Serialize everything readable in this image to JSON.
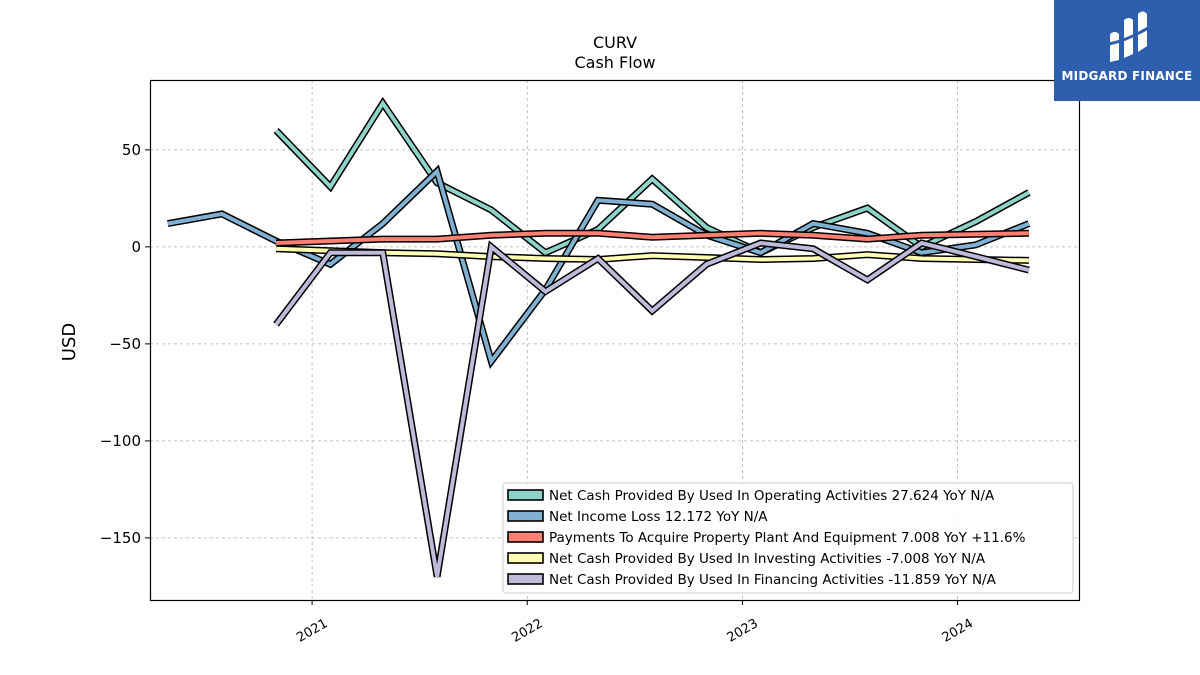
{
  "chart_data": {
    "type": "line",
    "title": "CURV",
    "subtitle": "Cash Flow",
    "xlabel": "",
    "ylabel": "USD",
    "xlim": [
      "2020-04-01",
      "2024-07-25"
    ],
    "ylim": [
      -182,
      86
    ],
    "x_ticks": [
      "2021-01-01",
      "2022-01-01",
      "2023-01-01",
      "2024-01-01"
    ],
    "x_tick_labels": [
      "2021",
      "2022",
      "2023",
      "2024"
    ],
    "y_ticks": [
      50,
      0,
      -50,
      -100,
      -150
    ],
    "y_tick_labels": [
      "50",
      "0",
      "−50",
      "−100",
      "−150"
    ],
    "grid": true,
    "legend_position": "lower-right",
    "series": [
      {
        "name": "Net Cash Provided By Used In Operating Activities",
        "legend_label": "Net Cash Provided By Used In Operating Activities  27.624 YoY N/A",
        "color": "#8dd3c7",
        "points": [
          [
            "2020-11-01",
            60
          ],
          [
            "2021-02-01",
            31
          ],
          [
            "2021-05-01",
            74
          ],
          [
            "2021-08-01",
            33
          ],
          [
            "2021-11-01",
            19
          ],
          [
            "2022-02-01",
            -3
          ],
          [
            "2022-05-01",
            9
          ],
          [
            "2022-08-01",
            35
          ],
          [
            "2022-11-01",
            10
          ],
          [
            "2023-02-01",
            -3
          ],
          [
            "2023-05-01",
            10
          ],
          [
            "2023-08-01",
            20
          ],
          [
            "2023-11-01",
            0
          ],
          [
            "2024-02-01",
            13
          ],
          [
            "2024-05-01",
            28
          ]
        ]
      },
      {
        "name": "Net Income Loss",
        "legend_label": "Net Income Loss  12.172 YoY N/A",
        "color": "#80b1d3",
        "points": [
          [
            "2020-05-01",
            12
          ],
          [
            "2020-08-01",
            17
          ],
          [
            "2020-11-01",
            3
          ],
          [
            "2021-02-01",
            -9
          ],
          [
            "2021-05-01",
            12
          ],
          [
            "2021-08-01",
            39
          ],
          [
            "2021-11-01",
            -59
          ],
          [
            "2022-02-01",
            -22
          ],
          [
            "2022-05-01",
            24
          ],
          [
            "2022-08-01",
            22
          ],
          [
            "2022-11-01",
            6
          ],
          [
            "2023-02-01",
            -3
          ],
          [
            "2023-05-01",
            12
          ],
          [
            "2023-08-01",
            7
          ],
          [
            "2023-11-01",
            -3
          ],
          [
            "2024-02-01",
            1
          ],
          [
            "2024-05-01",
            12
          ]
        ]
      },
      {
        "name": "Payments To Acquire Property Plant And Equipment",
        "legend_label": "Payments To Acquire Property Plant And Equipment  7.008 YoY +11.6%",
        "color": "#fb8072",
        "points": [
          [
            "2020-11-01",
            2
          ],
          [
            "2021-02-01",
            3
          ],
          [
            "2021-05-01",
            4
          ],
          [
            "2021-08-01",
            4
          ],
          [
            "2021-11-01",
            6
          ],
          [
            "2022-02-01",
            7
          ],
          [
            "2022-05-01",
            7
          ],
          [
            "2022-08-01",
            5
          ],
          [
            "2022-11-01",
            6
          ],
          [
            "2023-02-01",
            7
          ],
          [
            "2023-05-01",
            6
          ],
          [
            "2023-08-01",
            4
          ],
          [
            "2023-11-01",
            6
          ],
          [
            "2024-02-01",
            6.5
          ],
          [
            "2024-05-01",
            7
          ]
        ]
      },
      {
        "name": "Net Cash Provided By Used In Investing Activities",
        "legend_label": "Net Cash Provided By Used In Investing Activities  -7.008 YoY N/A",
        "color": "#ffffb3",
        "points": [
          [
            "2020-11-01",
            -1
          ],
          [
            "2021-02-01",
            -2
          ],
          [
            "2021-05-01",
            -3
          ],
          [
            "2021-08-01",
            -3.5
          ],
          [
            "2021-11-01",
            -5
          ],
          [
            "2022-02-01",
            -6
          ],
          [
            "2022-05-01",
            -6.5
          ],
          [
            "2022-08-01",
            -4.5
          ],
          [
            "2022-11-01",
            -5.5
          ],
          [
            "2023-02-01",
            -6.5
          ],
          [
            "2023-05-01",
            -6
          ],
          [
            "2023-08-01",
            -4
          ],
          [
            "2023-11-01",
            -6
          ],
          [
            "2024-02-01",
            -6.5
          ],
          [
            "2024-05-01",
            -7
          ]
        ]
      },
      {
        "name": "Net Cash Provided By Used In Financing Activities",
        "legend_label": "Net Cash Provided By Used In Financing Activities  -11.859 YoY N/A",
        "color": "#bebada",
        "points": [
          [
            "2020-11-01",
            -40
          ],
          [
            "2021-02-01",
            -3
          ],
          [
            "2021-05-01",
            -3
          ],
          [
            "2021-08-01",
            -170
          ],
          [
            "2021-11-01",
            0
          ],
          [
            "2022-02-01",
            -23
          ],
          [
            "2022-05-01",
            -6
          ],
          [
            "2022-08-01",
            -33
          ],
          [
            "2022-11-01",
            -9
          ],
          [
            "2023-02-01",
            2
          ],
          [
            "2023-05-01",
            -1
          ],
          [
            "2023-08-01",
            -17
          ],
          [
            "2023-11-01",
            2
          ],
          [
            "2024-02-01",
            -5
          ],
          [
            "2024-05-01",
            -12
          ]
        ]
      }
    ]
  },
  "logo": {
    "text": "MIDGARD FINANCE",
    "background": "#2d5fae"
  }
}
